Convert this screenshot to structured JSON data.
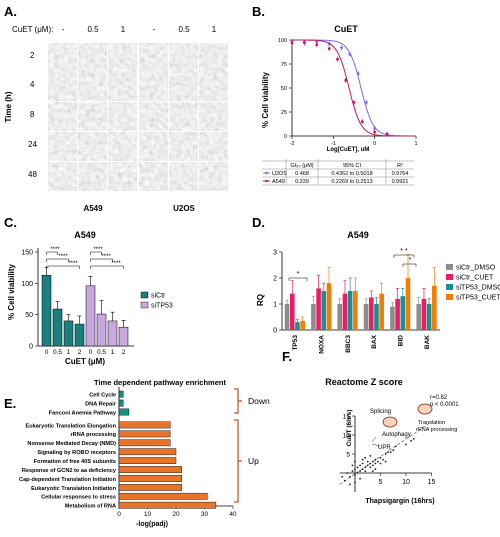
{
  "panels": {
    "A": {
      "letter": "A.",
      "cuet_label": "CuET (μM):",
      "conc_labels": [
        "-",
        "0.5",
        "1",
        "-",
        "0.5",
        "1"
      ],
      "time_label": "Time (h)",
      "times": [
        "2",
        "4",
        "8",
        "24",
        "48"
      ],
      "cell_lines": [
        "A549",
        "U2OS"
      ]
    },
    "B": {
      "letter": "B.",
      "title": "CuET",
      "ylabel": "% Cell viability",
      "xlabel": "Log[CuET], uM",
      "table_headers": [
        "",
        "GI₅₀ (μM)",
        "95% CI",
        "R²"
      ],
      "table_rows": [
        [
          "U2OS",
          "0.468",
          "0.4362 to 0.5018",
          "0.9764"
        ],
        [
          "A549",
          "0.239",
          "0.2269 to 0.2513",
          "0.9921"
        ]
      ]
    },
    "C": {
      "letter": "C.",
      "title": "A549",
      "ylabel": "% Cell viability",
      "xlabel": "CuET (μM)",
      "sig": [
        "****",
        "****",
        "****",
        "****",
        "****",
        "****"
      ]
    },
    "D": {
      "letter": "D.",
      "title": "A549",
      "ylabel": "RQ",
      "sig": [
        "*",
        "* *",
        "*"
      ]
    },
    "E": {
      "letter": "E.",
      "title": "Time dependent pathway enrichment",
      "xlabel": "-log(padj)",
      "groups": [
        "Down",
        "Up"
      ]
    },
    "F": {
      "letter": "F.",
      "title": "Reactome Z score",
      "xlabel": "Thapsigargin (16hrs)",
      "ylabel": "CuET (6hrs)",
      "stats": [
        "r=0.82",
        "p < 0.0001"
      ],
      "annotations": [
        "Splicing",
        "Autophagy",
        "UPR",
        "Translation",
        "rRNA processing"
      ]
    }
  },
  "chart_data": [
    {
      "id": "B",
      "type": "line",
      "title": "CuET",
      "xlabel": "Log[CuET], uM",
      "ylabel": "% Cell viability",
      "xlim": [
        -2,
        1
      ],
      "ylim": [
        0,
        100
      ],
      "xticks": [
        -2,
        -1,
        0,
        1
      ],
      "yticks": [
        0,
        25,
        50,
        75,
        100
      ],
      "series": [
        {
          "name": "U2OS",
          "color": "#7b68ee",
          "logGI50": -0.33,
          "points": [
            [
              -2,
              99
            ],
            [
              -1.7,
              98
            ],
            [
              -1.4,
              98
            ],
            [
              -1.1,
              96
            ],
            [
              -0.8,
              92
            ],
            [
              -0.6,
              85
            ],
            [
              -0.4,
              65
            ],
            [
              -0.2,
              35
            ],
            [
              0,
              8
            ],
            [
              0.3,
              2
            ]
          ]
        },
        {
          "name": "A549",
          "color": "#c2185b",
          "logGI50": -0.62,
          "points": [
            [
              -2,
              97
            ],
            [
              -1.7,
              97
            ],
            [
              -1.4,
              95
            ],
            [
              -1.1,
              91
            ],
            [
              -0.9,
              80
            ],
            [
              -0.7,
              58
            ],
            [
              -0.5,
              35
            ],
            [
              -0.3,
              15
            ],
            [
              0,
              4
            ],
            [
              0.3,
              2
            ]
          ]
        }
      ]
    },
    {
      "id": "C",
      "type": "bar",
      "title": "A549",
      "xlabel": "CuET (μM)",
      "ylabel": "% Cell viability",
      "ylim": [
        0,
        150
      ],
      "yticks": [
        0,
        50,
        100,
        150
      ],
      "categories": [
        "0",
        "0.5",
        "1",
        "2"
      ],
      "series": [
        {
          "name": "siCtr",
          "color": "#1a7f7f",
          "values": [
            113,
            59,
            40,
            35
          ],
          "errors": [
            12,
            12,
            10,
            13
          ]
        },
        {
          "name": "siTP53",
          "color": "#c9a8e0",
          "values": [
            96,
            51,
            40,
            30
          ],
          "errors": [
            15,
            22,
            14,
            11
          ]
        }
      ]
    },
    {
      "id": "D",
      "type": "bar",
      "title": "A549",
      "ylabel": "RQ",
      "ylim": [
        0,
        3
      ],
      "yticks": [
        0,
        1,
        2,
        3
      ],
      "categories": [
        "TP53",
        "NOXA",
        "BBC3",
        "BAX",
        "BID",
        "BAK"
      ],
      "series": [
        {
          "name": "siCtr_DMSO",
          "color": "#8c8c8c",
          "values": [
            1.0,
            1.0,
            1.0,
            1.0,
            0.9,
            1.0
          ],
          "errors": [
            0.15,
            0.3,
            0.2,
            0.2,
            0.15,
            0.25
          ]
        },
        {
          "name": "siCtr_CUET",
          "color": "#e91e63",
          "values": [
            1.4,
            1.6,
            1.4,
            1.25,
            1.2,
            1.2
          ],
          "errors": [
            0.5,
            0.5,
            0.5,
            0.25,
            0.4,
            0.4
          ]
        },
        {
          "name": "siTP53_DMSO",
          "color": "#1a8f8f",
          "values": [
            0.3,
            1.5,
            1.5,
            1.0,
            1.3,
            1.0
          ],
          "errors": [
            0.1,
            0.3,
            0.5,
            0.25,
            0.3,
            0.2
          ]
        },
        {
          "name": "siTP53_CUET",
          "color": "#f57c00",
          "values": [
            0.35,
            1.8,
            1.5,
            1.4,
            2.0,
            1.7
          ],
          "errors": [
            0.15,
            0.6,
            0.5,
            0.4,
            0.9,
            0.7
          ]
        }
      ]
    },
    {
      "id": "E",
      "type": "bar",
      "orientation": "horizontal",
      "xlabel": "-log(padj)",
      "xlim": [
        0,
        40
      ],
      "xticks": [
        0,
        10,
        20,
        30,
        40
      ],
      "categories": [
        "Cell Cycle",
        "DNA Repair",
        "Fanconi Anemia Pathway",
        "Eukaryotic Translation Elongation",
        "rRNA processing",
        "Nonsense Mediated Decay (NMD)",
        "Signaling by ROBO receptors",
        "Formation of free 40S subunits",
        "Response of GCN2 to aa deficiency",
        "Cap-dependent Translation Initiation",
        "Eukaryotic Translation Initiation",
        "Cellular responses to stress",
        "Metabolism of RNA"
      ],
      "values": [
        1.5,
        1.5,
        3.5,
        18,
        18,
        18,
        20,
        20,
        22,
        22,
        22,
        31,
        34
      ],
      "groups": [
        "down",
        "down",
        "down",
        "up",
        "up",
        "up",
        "up",
        "up",
        "up",
        "up",
        "up",
        "up",
        "up"
      ],
      "colors": {
        "down": "#1a8f7f",
        "up": "#e8742c"
      }
    },
    {
      "id": "F",
      "type": "scatter",
      "title": "Reactome Z score",
      "xlabel": "Thapsigargin (16hrs)",
      "ylabel": "CuET (6hrs)",
      "xlim": [
        -3,
        15
      ],
      "ylim": [
        -5,
        15
      ],
      "xticks": [
        5,
        10,
        15
      ],
      "yticks": [
        5,
        10,
        15
      ],
      "fit": [
        [
          -3,
          -3
        ],
        [
          15,
          13.5
        ]
      ],
      "points": [
        [
          -2.5,
          -1
        ],
        [
          -2,
          -2
        ],
        [
          -1.5,
          0
        ],
        [
          -1,
          -1
        ],
        [
          -0.5,
          0.5
        ],
        [
          0,
          -0.5
        ],
        [
          0,
          1
        ],
        [
          0.5,
          0
        ],
        [
          0.5,
          1.5
        ],
        [
          1,
          0.5
        ],
        [
          1,
          2
        ],
        [
          1.5,
          1
        ],
        [
          1.5,
          2.5
        ],
        [
          2,
          1.5
        ],
        [
          2,
          0.5
        ],
        [
          2.5,
          2
        ],
        [
          2.5,
          3
        ],
        [
          3,
          2.5
        ],
        [
          3,
          1.5
        ],
        [
          3.5,
          3
        ],
        [
          3.5,
          2
        ],
        [
          4,
          3.5
        ],
        [
          4,
          2.5
        ],
        [
          4.5,
          3
        ],
        [
          5,
          4
        ],
        [
          5,
          2.5
        ],
        [
          5.5,
          3.5
        ],
        [
          6,
          5
        ],
        [
          6.5,
          5.5
        ],
        [
          7,
          5.5
        ],
        [
          7.5,
          6
        ],
        [
          8,
          7
        ],
        [
          10,
          7.5
        ],
        [
          11,
          8.5
        ],
        [
          11.5,
          9
        ],
        [
          -1,
          -3
        ],
        [
          0,
          -2.5
        ],
        [
          1,
          -1.5
        ],
        [
          0,
          3
        ],
        [
          -0.5,
          2
        ],
        [
          2,
          4
        ],
        [
          3,
          4.5
        ],
        [
          1.5,
          3.5
        ],
        [
          4,
          1
        ],
        [
          6,
          3
        ],
        [
          3.5,
          0.5
        ]
      ]
    }
  ]
}
